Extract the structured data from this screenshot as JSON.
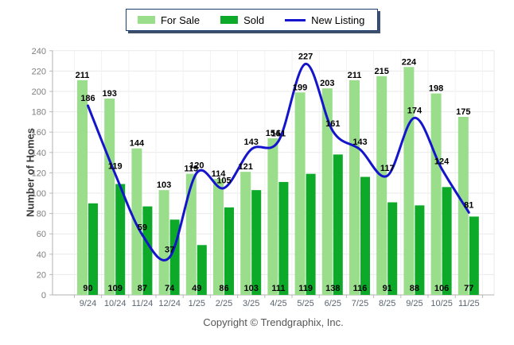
{
  "legend": {
    "items": [
      {
        "series_index": 0,
        "kind": "bar"
      },
      {
        "series_index": 1,
        "kind": "bar"
      },
      {
        "series_index": 2,
        "kind": "line"
      }
    ]
  },
  "footer": {
    "copyright": "Copyright © Trendgraphix, Inc."
  },
  "chart_data": {
    "type": "bar",
    "title": "",
    "categories": [
      "9/24",
      "10/24",
      "11/24",
      "12/24",
      "1/25",
      "2/25",
      "3/25",
      "4/25",
      "5/25",
      "6/25",
      "7/25",
      "8/25",
      "9/25",
      "10/25",
      "11/25"
    ],
    "series": [
      {
        "name": "For Sale",
        "type": "bar",
        "color": "#9ade8c",
        "values": [
          211,
          193,
          144,
          103,
          119,
          114,
          121,
          154,
          199,
          203,
          211,
          215,
          224,
          198,
          175
        ]
      },
      {
        "name": "Sold",
        "type": "bar",
        "color": "#0caa28",
        "values": [
          90,
          109,
          87,
          74,
          49,
          86,
          103,
          111,
          119,
          138,
          116,
          91,
          88,
          106,
          77
        ]
      },
      {
        "name": "New Listing",
        "type": "line",
        "color": "#1414cc",
        "values": [
          186,
          119,
          59,
          37,
          120,
          105,
          143,
          151,
          227,
          161,
          143,
          117,
          174,
          124,
          81
        ]
      }
    ],
    "xlabel": "",
    "ylabel": "Number of Homes",
    "ylim": [
      0,
      240
    ],
    "ytick_step": 20,
    "grid": true,
    "legend_position": "top-center",
    "value_labels": true
  }
}
